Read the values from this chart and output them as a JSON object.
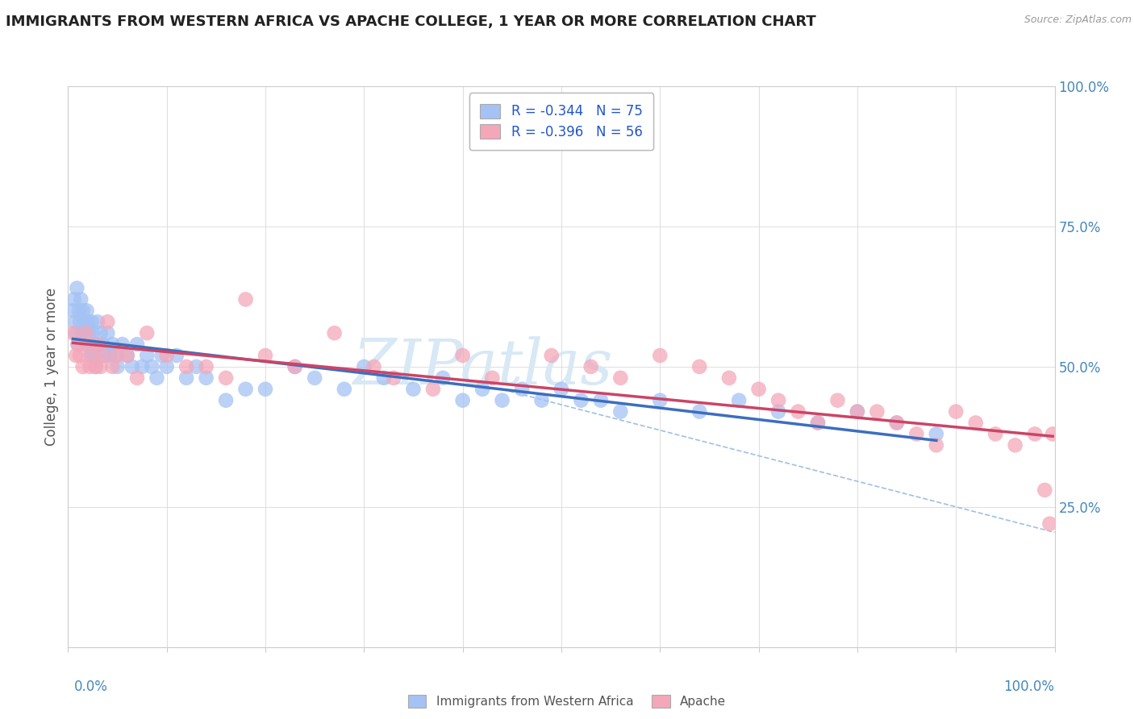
{
  "title": "IMMIGRANTS FROM WESTERN AFRICA VS APACHE COLLEGE, 1 YEAR OR MORE CORRELATION CHART",
  "source": "Source: ZipAtlas.com",
  "ylabel": "College, 1 year or more",
  "legend_label_1": "Immigrants from Western Africa",
  "legend_label_2": "Apache",
  "R1": -0.344,
  "N1": 75,
  "R2": -0.396,
  "N2": 56,
  "xlim": [
    0.0,
    1.0
  ],
  "ylim": [
    0.0,
    1.0
  ],
  "ytick_positions": [
    0.0,
    0.25,
    0.5,
    0.75,
    1.0
  ],
  "ytick_labels": [
    "",
    "25.0%",
    "50.0%",
    "75.0%",
    "100.0%"
  ],
  "xtick_positions": [
    0.0,
    0.1,
    0.2,
    0.3,
    0.4,
    0.5,
    0.6,
    0.7,
    0.8,
    0.9,
    1.0
  ],
  "color_blue": "#a4c2f4",
  "color_blue_line": "#3c6ebf",
  "color_pink": "#f4a7b9",
  "color_pink_line": "#cc4466",
  "color_dashed": "#a0c0e0",
  "watermark_text": "ZIPatlas",
  "watermark_color": "#d8e8f5",
  "background": "#ffffff",
  "title_color": "#222222",
  "tick_color": "#4488bb",
  "legend_text_color": "#2255cc",
  "blue_x": [
    0.005,
    0.006,
    0.007,
    0.008,
    0.009,
    0.01,
    0.011,
    0.012,
    0.013,
    0.014,
    0.015,
    0.016,
    0.017,
    0.018,
    0.019,
    0.02,
    0.021,
    0.022,
    0.023,
    0.024,
    0.025,
    0.026,
    0.027,
    0.028,
    0.03,
    0.031,
    0.033,
    0.035,
    0.037,
    0.04,
    0.042,
    0.045,
    0.048,
    0.05,
    0.055,
    0.06,
    0.065,
    0.07,
    0.075,
    0.08,
    0.085,
    0.09,
    0.095,
    0.1,
    0.11,
    0.12,
    0.13,
    0.14,
    0.16,
    0.18,
    0.2,
    0.23,
    0.25,
    0.28,
    0.3,
    0.32,
    0.35,
    0.38,
    0.4,
    0.42,
    0.44,
    0.46,
    0.48,
    0.5,
    0.52,
    0.54,
    0.56,
    0.6,
    0.64,
    0.68,
    0.72,
    0.76,
    0.8,
    0.84,
    0.88
  ],
  "blue_y": [
    0.6,
    0.62,
    0.58,
    0.56,
    0.64,
    0.54,
    0.6,
    0.58,
    0.62,
    0.56,
    0.6,
    0.58,
    0.56,
    0.54,
    0.6,
    0.58,
    0.56,
    0.54,
    0.52,
    0.58,
    0.56,
    0.54,
    0.52,
    0.5,
    0.58,
    0.54,
    0.56,
    0.54,
    0.52,
    0.56,
    0.52,
    0.54,
    0.52,
    0.5,
    0.54,
    0.52,
    0.5,
    0.54,
    0.5,
    0.52,
    0.5,
    0.48,
    0.52,
    0.5,
    0.52,
    0.48,
    0.5,
    0.48,
    0.44,
    0.46,
    0.46,
    0.5,
    0.48,
    0.46,
    0.5,
    0.48,
    0.46,
    0.48,
    0.44,
    0.46,
    0.44,
    0.46,
    0.44,
    0.46,
    0.44,
    0.44,
    0.42,
    0.44,
    0.42,
    0.44,
    0.42,
    0.4,
    0.42,
    0.4,
    0.38
  ],
  "pink_x": [
    0.005,
    0.008,
    0.01,
    0.012,
    0.015,
    0.018,
    0.02,
    0.022,
    0.025,
    0.028,
    0.03,
    0.033,
    0.036,
    0.04,
    0.045,
    0.05,
    0.06,
    0.07,
    0.08,
    0.1,
    0.12,
    0.14,
    0.16,
    0.18,
    0.2,
    0.23,
    0.27,
    0.31,
    0.33,
    0.37,
    0.4,
    0.43,
    0.49,
    0.53,
    0.56,
    0.6,
    0.64,
    0.67,
    0.7,
    0.72,
    0.74,
    0.76,
    0.78,
    0.8,
    0.82,
    0.84,
    0.86,
    0.88,
    0.9,
    0.92,
    0.94,
    0.96,
    0.98,
    0.99,
    0.995,
    0.998
  ],
  "pink_y": [
    0.56,
    0.52,
    0.54,
    0.52,
    0.5,
    0.56,
    0.54,
    0.5,
    0.52,
    0.5,
    0.54,
    0.5,
    0.52,
    0.58,
    0.5,
    0.52,
    0.52,
    0.48,
    0.56,
    0.52,
    0.5,
    0.5,
    0.48,
    0.62,
    0.52,
    0.5,
    0.56,
    0.5,
    0.48,
    0.46,
    0.52,
    0.48,
    0.52,
    0.5,
    0.48,
    0.52,
    0.5,
    0.48,
    0.46,
    0.44,
    0.42,
    0.4,
    0.44,
    0.42,
    0.42,
    0.4,
    0.38,
    0.36,
    0.42,
    0.4,
    0.38,
    0.36,
    0.38,
    0.28,
    0.22,
    0.38
  ]
}
